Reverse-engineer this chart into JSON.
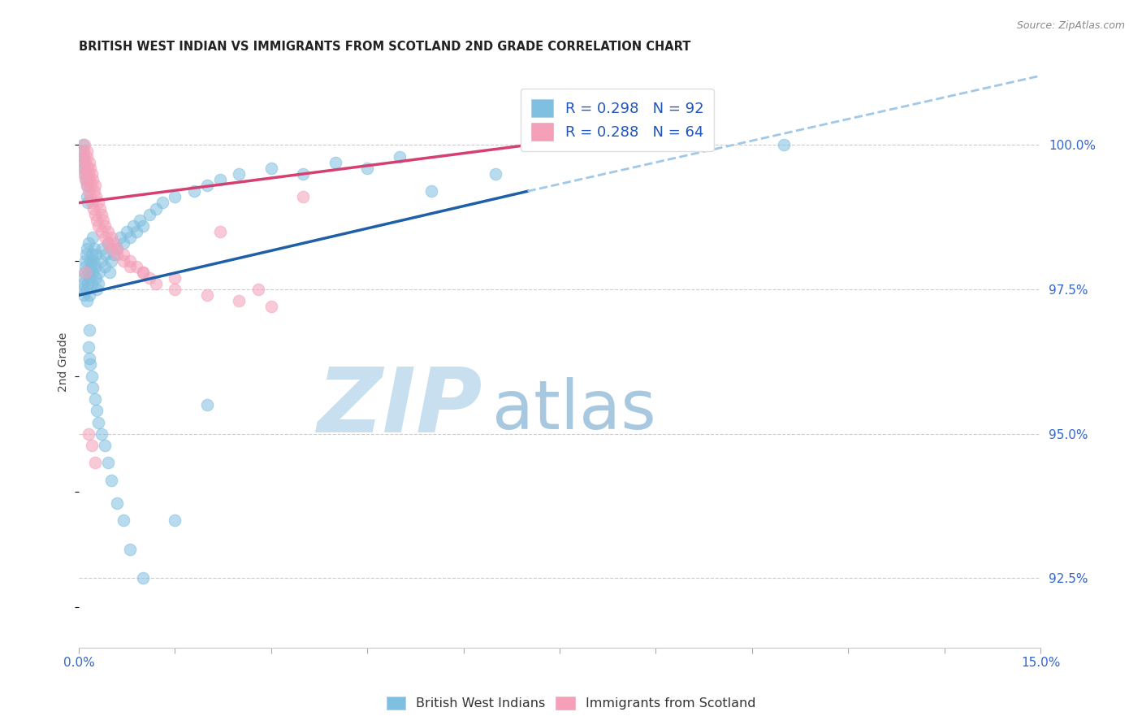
{
  "title": "BRITISH WEST INDIAN VS IMMIGRANTS FROM SCOTLAND 2ND GRADE CORRELATION CHART",
  "source": "Source: ZipAtlas.com",
  "ylabel": "2nd Grade",
  "ytick_vals": [
    92.5,
    95.0,
    97.5,
    100.0
  ],
  "ytick_labels": [
    "92.5%",
    "95.0%",
    "97.5%",
    "100.0%"
  ],
  "xmin": 0.0,
  "xmax": 15.0,
  "ymin": 91.3,
  "ymax": 101.2,
  "legend_r_blue": "R = 0.298",
  "legend_n_blue": "N = 92",
  "legend_r_pink": "R = 0.288",
  "legend_n_pink": "N = 64",
  "color_blue": "#7fbfdf",
  "color_pink": "#f4a0b8",
  "color_blue_line": "#1f5fa6",
  "color_pink_line": "#d44070",
  "color_dashed": "#a0c8e8",
  "blue_scatter_x": [
    0.05,
    0.06,
    0.07,
    0.08,
    0.09,
    0.1,
    0.1,
    0.11,
    0.12,
    0.12,
    0.13,
    0.14,
    0.15,
    0.15,
    0.16,
    0.17,
    0.18,
    0.19,
    0.2,
    0.2,
    0.21,
    0.22,
    0.23,
    0.24,
    0.25,
    0.26,
    0.27,
    0.28,
    0.3,
    0.32,
    0.35,
    0.37,
    0.4,
    0.42,
    0.45,
    0.48,
    0.5,
    0.55,
    0.6,
    0.65,
    0.7,
    0.75,
    0.8,
    0.85,
    0.9,
    0.95,
    1.0,
    1.1,
    1.2,
    1.3,
    1.5,
    1.8,
    2.0,
    2.2,
    2.5,
    3.0,
    3.5,
    4.0,
    4.5,
    5.0,
    0.05,
    0.06,
    0.07,
    0.08,
    0.09,
    0.1,
    0.11,
    0.12,
    0.13,
    0.14,
    0.15,
    0.16,
    0.17,
    0.18,
    0.2,
    0.22,
    0.25,
    0.28,
    0.3,
    0.35,
    0.4,
    0.45,
    0.5,
    0.6,
    0.7,
    0.8,
    1.0,
    1.5,
    2.0,
    5.5,
    6.5,
    11.0
  ],
  "blue_scatter_y": [
    97.5,
    97.6,
    97.7,
    97.4,
    97.8,
    97.9,
    98.0,
    98.1,
    97.5,
    97.3,
    98.2,
    97.6,
    97.8,
    98.3,
    97.4,
    97.7,
    98.0,
    97.9,
    98.1,
    97.6,
    98.4,
    97.8,
    98.0,
    98.2,
    97.9,
    97.7,
    98.1,
    97.5,
    97.6,
    97.8,
    98.0,
    98.2,
    97.9,
    98.1,
    98.3,
    97.8,
    98.0,
    98.1,
    98.2,
    98.4,
    98.3,
    98.5,
    98.4,
    98.6,
    98.5,
    98.7,
    98.6,
    98.8,
    98.9,
    99.0,
    99.1,
    99.2,
    99.3,
    99.4,
    99.5,
    99.6,
    99.5,
    99.7,
    99.6,
    99.8,
    99.9,
    100.0,
    99.8,
    99.7,
    99.6,
    99.5,
    99.4,
    99.3,
    99.1,
    99.0,
    96.5,
    96.3,
    96.8,
    96.2,
    96.0,
    95.8,
    95.6,
    95.4,
    95.2,
    95.0,
    94.8,
    94.5,
    94.2,
    93.8,
    93.5,
    93.0,
    92.5,
    93.5,
    95.5,
    99.2,
    99.5,
    100.0
  ],
  "pink_scatter_x": [
    0.05,
    0.07,
    0.09,
    0.1,
    0.12,
    0.13,
    0.14,
    0.15,
    0.16,
    0.17,
    0.18,
    0.19,
    0.2,
    0.22,
    0.24,
    0.25,
    0.27,
    0.3,
    0.33,
    0.35,
    0.38,
    0.4,
    0.45,
    0.5,
    0.55,
    0.6,
    0.7,
    0.8,
    0.9,
    1.0,
    1.1,
    1.2,
    1.5,
    2.0,
    2.5,
    3.0,
    0.06,
    0.08,
    0.1,
    0.12,
    0.15,
    0.18,
    0.2,
    0.23,
    0.25,
    0.28,
    0.3,
    0.35,
    0.4,
    0.45,
    0.5,
    0.6,
    0.7,
    0.8,
    1.0,
    1.5,
    2.2,
    3.5,
    2.8,
    9.5,
    0.1,
    0.15,
    0.2,
    0.25
  ],
  "pink_scatter_y": [
    99.8,
    99.9,
    100.0,
    99.7,
    99.8,
    99.9,
    99.6,
    99.5,
    99.7,
    99.4,
    99.6,
    99.3,
    99.5,
    99.4,
    99.2,
    99.3,
    99.1,
    99.0,
    98.9,
    98.8,
    98.7,
    98.6,
    98.5,
    98.4,
    98.3,
    98.2,
    98.1,
    98.0,
    97.9,
    97.8,
    97.7,
    97.6,
    97.5,
    97.4,
    97.3,
    97.2,
    99.6,
    99.5,
    99.4,
    99.3,
    99.2,
    99.1,
    99.0,
    98.9,
    98.8,
    98.7,
    98.6,
    98.5,
    98.4,
    98.3,
    98.2,
    98.1,
    98.0,
    97.9,
    97.8,
    97.7,
    98.5,
    99.1,
    97.5,
    100.0,
    97.8,
    95.0,
    94.8,
    94.5
  ],
  "blue_line_x0": 0.0,
  "blue_line_x1": 7.0,
  "blue_line_y0": 97.4,
  "blue_line_y1": 99.2,
  "blue_dashed_x0": 7.0,
  "blue_dashed_x1": 15.0,
  "blue_dashed_y0": 99.2,
  "blue_dashed_y1": 101.2,
  "pink_line_x0": 0.0,
  "pink_line_x1": 7.0,
  "pink_line_y0": 99.0,
  "pink_line_y1": 100.0,
  "watermark_zip": "ZIP",
  "watermark_atlas": "atlas",
  "watermark_color_zip": "#c8dff0",
  "watermark_color_atlas": "#a8c8e0"
}
